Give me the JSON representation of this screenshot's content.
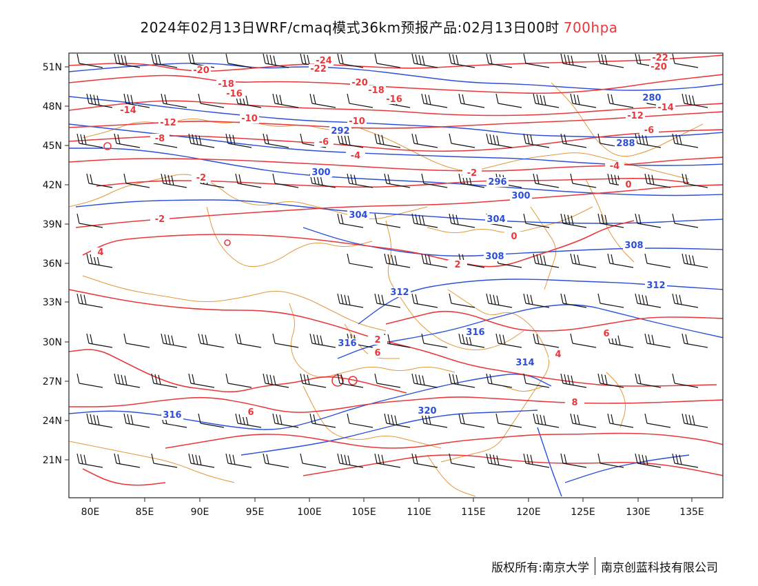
{
  "title": {
    "main": "2024年02月13日WRF/cmaq模式36km预报产品:02月13日00时",
    "level": "700hpa"
  },
  "footer": {
    "left": "版权所有:南京大学",
    "right": "南京创蓝科技有限公司"
  },
  "map": {
    "lat_labels": [
      "51N",
      "48N",
      "45N",
      "42N",
      "39N",
      "36N",
      "33N",
      "30N",
      "27N",
      "24N",
      "21N"
    ],
    "lon_labels": [
      "80E",
      "85E",
      "90E",
      "95E",
      "100E",
      "105E",
      "110E",
      "115E",
      "120E",
      "125E",
      "130E",
      "135E"
    ],
    "colors": {
      "temperature": "#e8383b",
      "height": "#2b4fd8",
      "border": "#e0973a",
      "wind": "#111111"
    },
    "temperature_labels": [
      "-24",
      "-22",
      "-22",
      "-20",
      "-20",
      "-20",
      "-18",
      "-18",
      "-16",
      "-16",
      "-14",
      "-14",
      "-12",
      "-12",
      "-10",
      "-10",
      "-8",
      "-6",
      "-6",
      "-4",
      "-4",
      "-2",
      "-2",
      "0",
      "-2",
      "0",
      "2",
      "4",
      "2",
      "4",
      "6",
      "6",
      "6",
      "8"
    ],
    "height_labels": [
      "280",
      "288",
      "292",
      "296",
      "300",
      "300",
      "304",
      "304",
      "308",
      "308",
      "312",
      "312",
      "316",
      "316",
      "314",
      "316",
      "320"
    ]
  }
}
